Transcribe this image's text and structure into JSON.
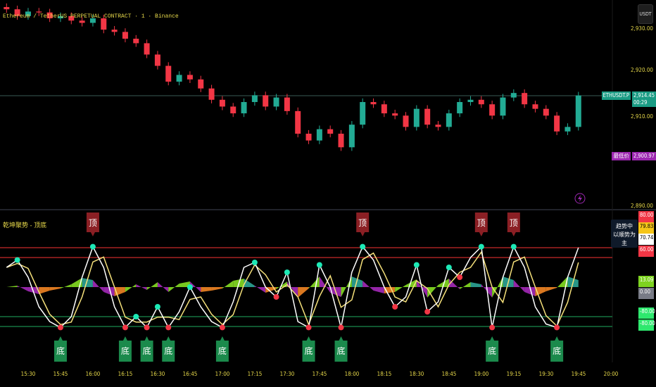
{
  "header": {
    "symbol_title": "Ethereum / TetherUS PERPETUAL CONTRACT · 1 · Binance",
    "currency_button": "USDT"
  },
  "indicator": {
    "title": "乾坤聚势 - 顶底",
    "trend_status": [
      "趋势中",
      "以顺势为主"
    ]
  },
  "price_axis": {
    "ticks": [
      "2,930.00",
      "2,920.00",
      "2,910.00",
      "2,890.00"
    ],
    "last_price": {
      "symbol": "ETHUSDT.P",
      "value": "2,914.45",
      "countdown": "00:29"
    },
    "low_price": {
      "label": "最低价",
      "value": "2,900.97"
    }
  },
  "indicator_axis": {
    "labels": [
      {
        "text": "80.00",
        "color": "#f23645"
      },
      {
        "text": "79.83",
        "color": "#f5c518"
      },
      {
        "text": "70.74",
        "color": "#ffffff"
      },
      {
        "text": "60.00",
        "color": "#f23645"
      },
      {
        "text": "13.09",
        "color": "#7ed321"
      },
      {
        "text": "0.00",
        "color": "#787b86"
      },
      {
        "text": "-80.00",
        "color": "#2ee86e"
      },
      {
        "text": "-80.00",
        "color": "#2ee86e"
      }
    ]
  },
  "colors": {
    "up": "#22ab94",
    "down": "#f23645",
    "osc": "#ffffff",
    "signal": "#f5e07a",
    "top": "#8b1f24",
    "bottom": "#1b8a4c",
    "purple": "#9c27b0"
  },
  "chart_data": [
    {
      "type": "candlestick",
      "title": "Ethereum / TetherUS PERPETUAL CONTRACT · 1 · Binance",
      "x": [
        "15:20",
        "15:25",
        "15:30",
        "15:35",
        "15:40",
        "15:45",
        "15:50",
        "15:55",
        "16:00",
        "16:05",
        "16:10",
        "16:15",
        "16:20",
        "16:25",
        "16:30",
        "16:35",
        "16:40",
        "16:45",
        "16:50",
        "16:55",
        "17:00",
        "17:05",
        "17:10",
        "17:15",
        "17:20",
        "17:25",
        "17:30",
        "17:35",
        "17:40",
        "17:45",
        "17:50",
        "17:55",
        "18:00",
        "18:05",
        "18:10",
        "18:15",
        "18:20",
        "18:25",
        "18:30",
        "18:35",
        "18:40",
        "18:45",
        "18:50",
        "18:55",
        "19:00",
        "19:05",
        "19:10",
        "19:15",
        "19:20",
        "19:25",
        "19:30",
        "19:35",
        "19:40",
        "19:45"
      ],
      "close": [
        2933.5,
        2932,
        2933,
        2932.8,
        2931.5,
        2932,
        2931,
        2930.5,
        2931.5,
        2929,
        2928.5,
        2927,
        2926,
        2923.5,
        2921,
        2917.5,
        2919,
        2918,
        2916,
        2913.5,
        2912,
        2910.5,
        2913,
        2914.5,
        2912,
        2914,
        2911,
        2906,
        2904.5,
        2907,
        2906,
        2903,
        2908,
        2913,
        2912.5,
        2910.5,
        2910,
        2907.5,
        2911.5,
        2908,
        2907.5,
        2910.5,
        2913,
        2913.5,
        2912.5,
        2910,
        2914,
        2915,
        2912.5,
        2911.5,
        2910,
        2906.5,
        2907.5,
        2914.45
      ],
      "ylim": [
        2888,
        2936
      ],
      "xticks": [
        "15:30",
        "15:45",
        "16:00",
        "16:15",
        "16:30",
        "16:45",
        "17:00",
        "17:15",
        "17:30",
        "17:45",
        "18:00",
        "18:15",
        "18:30",
        "18:45",
        "19:00",
        "19:15",
        "19:30",
        "19:45",
        "20:00"
      ]
    },
    {
      "type": "line",
      "title": "乾坤聚势 - 顶底",
      "ylim": [
        -100,
        100
      ],
      "levels": [
        80,
        60,
        -60,
        -80
      ],
      "osc": [
        40,
        55,
        20,
        -40,
        -70,
        -82,
        -60,
        20,
        82,
        40,
        -40,
        -82,
        -60,
        -82,
        -40,
        -82,
        -50,
        0,
        -40,
        -70,
        -82,
        -30,
        40,
        50,
        0,
        -20,
        30,
        -70,
        -82,
        45,
        0,
        -82,
        30,
        82,
        55,
        0,
        -40,
        -20,
        45,
        -50,
        -30,
        40,
        20,
        60,
        82,
        -82,
        20,
        82,
        40,
        -40,
        -75,
        -82,
        20,
        80
      ],
      "signal": [
        40,
        48,
        38,
        -10,
        -55,
        -76,
        -71,
        -20,
        51,
        61,
        0,
        -61,
        -71,
        -71,
        -61,
        -61,
        -66,
        -25,
        -20,
        -55,
        -76,
        -56,
        5,
        45,
        25,
        -10,
        5,
        -20,
        -76,
        -19,
        23,
        -41,
        -26,
        56,
        69,
        28,
        -20,
        -30,
        13,
        -3,
        -40,
        5,
        30,
        40,
        71,
        0,
        -31,
        51,
        61,
        0,
        -58,
        -79,
        -31,
        50
      ],
      "histogram": [
        0,
        2,
        -6,
        -10,
        -5,
        -2,
        4,
        13,
        10,
        -7,
        -13,
        -7,
        4,
        -4,
        7,
        -7,
        5,
        8,
        -7,
        -5,
        -2,
        9,
        12,
        2,
        -8,
        -3,
        8,
        -15,
        -2,
        15,
        -8,
        -14,
        15,
        9,
        -5,
        -9,
        -7,
        3,
        11,
        -15,
        3,
        12,
        -3,
        7,
        4,
        -15,
        15,
        10,
        -7,
        -13,
        -6,
        -1,
        15,
        10
      ],
      "top_labels": {
        "text": "顶",
        "bars": [
          8,
          33,
          44,
          47
        ]
      },
      "bottom_labels": {
        "text": "底",
        "bars": [
          5,
          11,
          13,
          15,
          20,
          28,
          31,
          45,
          51
        ]
      }
    }
  ]
}
